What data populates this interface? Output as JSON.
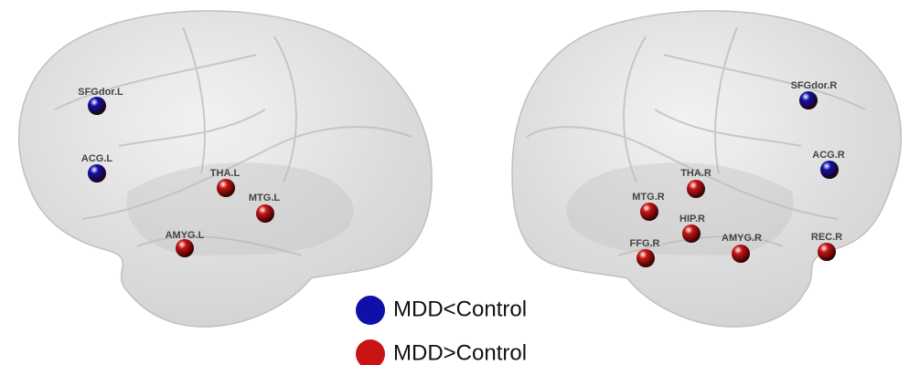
{
  "groups": [
    {
      "label": "MDD<Control",
      "color": "#1010a8",
      "left": [
        "SFGdor.L",
        "ACG.L"
      ],
      "right": [
        "SFGdor.R",
        "ACG.R"
      ]
    },
    {
      "label": "MDD>Control",
      "color": "#c81414",
      "left": [
        "THA.L",
        "MTG.L",
        "AMYG.L"
      ],
      "right": [
        "THA.R",
        "MTG.R",
        "HIP.R",
        "FFG.R",
        "AMYG.R",
        "REC.R"
      ]
    }
  ]
}
